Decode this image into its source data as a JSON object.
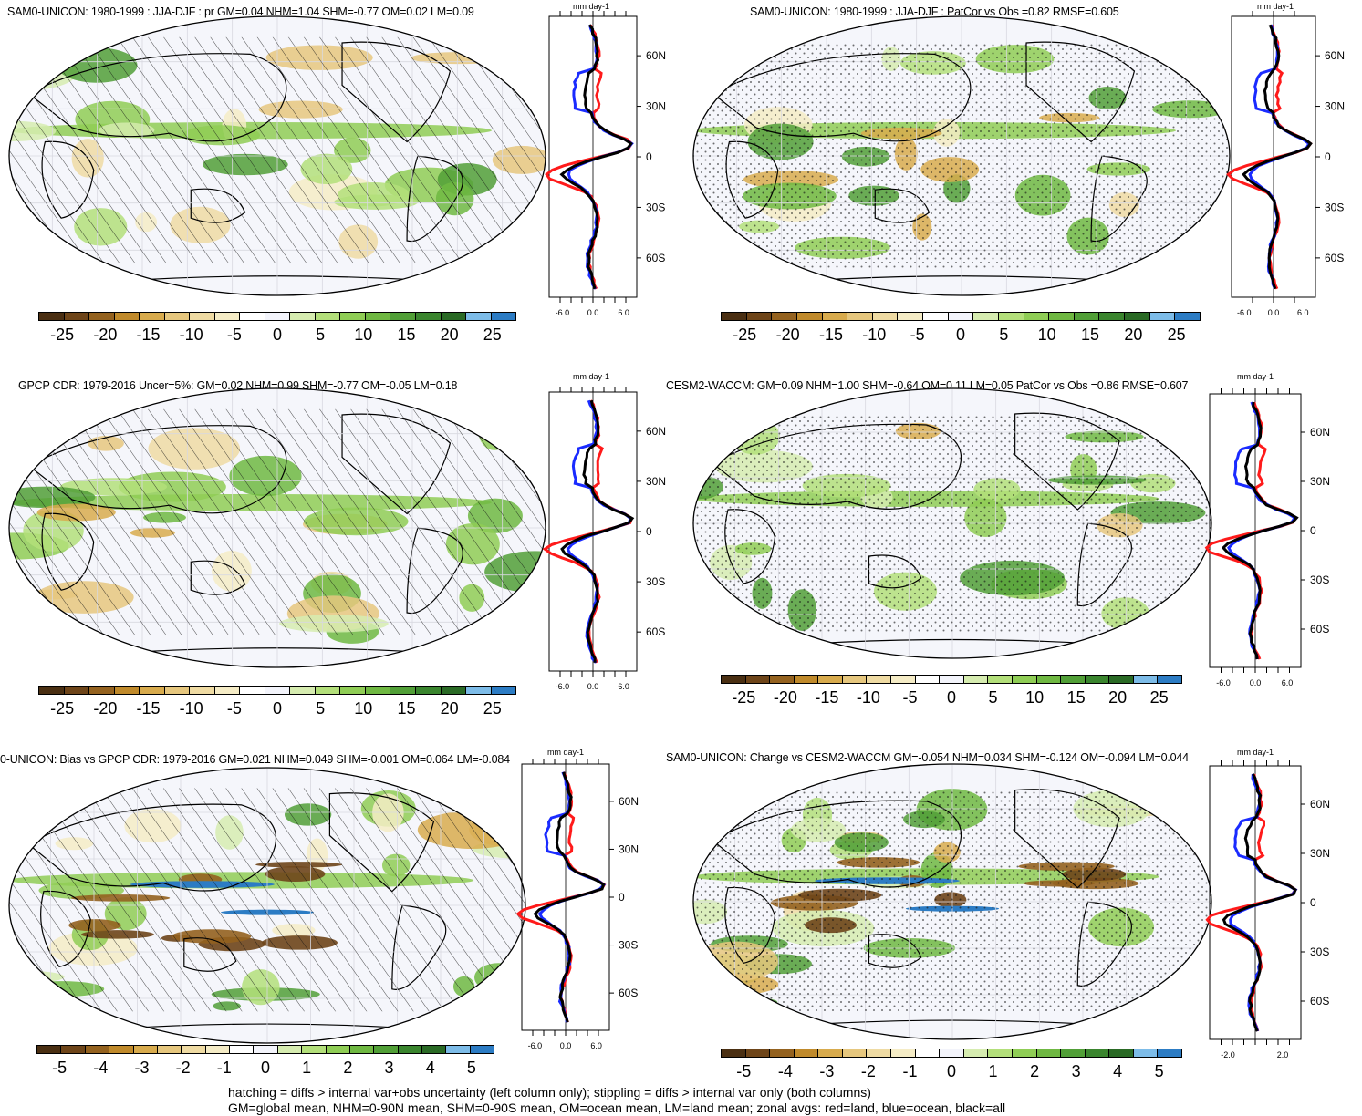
{
  "figure": {
    "panels": [
      {
        "id": "p1",
        "title": "SAM0-UNICON: 1980-1999 : JJA-DJF : pr GM=0.04 NHM=1.04 SHM=-0.77 OM=0.02 LM=0.09",
        "unit": "mm day-1",
        "lat_labels": [
          "60N",
          "30N",
          "0",
          "30S",
          "60S"
        ],
        "x_tick_labels": [
          "-6.0",
          "0.0",
          "6.0"
        ],
        "colorbar_labels": [
          "-25",
          "-20",
          "-15",
          "-10",
          "-5",
          "0",
          "5",
          "10",
          "15",
          "20",
          "25"
        ],
        "overlay": "hatch"
      },
      {
        "id": "p2",
        "title": "SAM0-UNICON: 1980-1999 : JJA-DJF : PatCor vs Obs =0.82 RMSE=0.605",
        "unit": "mm day-1",
        "lat_labels": [
          "60N",
          "30N",
          "0",
          "30S",
          "60S"
        ],
        "x_tick_labels": [
          "-6.0",
          "0.0",
          "6.0"
        ],
        "colorbar_labels": [
          "-25",
          "-20",
          "-15",
          "-10",
          "-5",
          "0",
          "5",
          "10",
          "15",
          "20",
          "25"
        ],
        "overlay": "stipple"
      },
      {
        "id": "p3",
        "title": "GPCP CDR: 1979-2016 Uncer=5%: GM=0.02 NHM=0.99 SHM=-0.77 OM=-0.05 LM=0.18",
        "unit": "mm day-1",
        "lat_labels": [
          "60N",
          "30N",
          "0",
          "30S",
          "60S"
        ],
        "x_tick_labels": [
          "-6.0",
          "0.0",
          "6.0"
        ],
        "colorbar_labels": [
          "-25",
          "-20",
          "-15",
          "-10",
          "-5",
          "0",
          "5",
          "10",
          "15",
          "20",
          "25"
        ],
        "overlay": "hatch"
      },
      {
        "id": "p4",
        "title": "CESM2-WACCM: GM=0.09 NHM=1.00 SHM=-0.64 OM=0.11 LM=0.05 PatCor vs Obs =0.86 RMSE=0.607",
        "unit": "mm day-1",
        "lat_labels": [
          "60N",
          "30N",
          "0",
          "30S",
          "60S"
        ],
        "x_tick_labels": [
          "-6.0",
          "0.0",
          "6.0"
        ],
        "colorbar_labels": [
          "-25",
          "-20",
          "-15",
          "-10",
          "-5",
          "0",
          "5",
          "10",
          "15",
          "20",
          "25"
        ],
        "overlay": "stipple"
      },
      {
        "id": "p5",
        "title": "0-UNICON: Bias vs GPCP CDR: 1979-2016 GM=0.021 NHM=0.049 SHM=-0.001 OM=0.064 LM=-0.084",
        "unit": "mm day-1",
        "lat_labels": [
          "60N",
          "30N",
          "0",
          "30S",
          "60S"
        ],
        "x_tick_labels": [
          "-6.0",
          "0.0",
          "6.0"
        ],
        "colorbar_labels": [
          "-5",
          "-4",
          "-3",
          "-2",
          "-1",
          "0",
          "1",
          "2",
          "3",
          "4",
          "5"
        ],
        "overlay": "hatch"
      },
      {
        "id": "p6",
        "title": "SAM0-UNICON: Change vs CESM2-WACCM GM=-0.054 NHM=0.034 SHM=-0.124 OM=-0.094 LM=0.044",
        "unit": "mm day-1",
        "lat_labels": [
          "60N",
          "30N",
          "0",
          "30S",
          "60S"
        ],
        "x_tick_labels": [
          "-2.0",
          "2.0"
        ],
        "colorbar_labels": [
          "-5",
          "-4",
          "-3",
          "-2",
          "-1",
          "0",
          "1",
          "2",
          "3",
          "4",
          "5"
        ],
        "overlay": "stipple"
      }
    ],
    "colorbar_colors": [
      "#4a2f12",
      "#6e4519",
      "#94621f",
      "#c08a2b",
      "#d8ab4d",
      "#e6c77e",
      "#efdba3",
      "#f5ecc6",
      "#ffffff",
      "#f3f4fb",
      "#d6ecb0",
      "#b3df7a",
      "#8fcd55",
      "#6fb842",
      "#519f37",
      "#3a852e",
      "#2a6a25",
      "#7dbce8",
      "#2c7cc4"
    ],
    "zonal_series": [
      "land",
      "ocean",
      "all"
    ],
    "colors": {
      "land": "#ff1a1a",
      "ocean": "#1a2bff",
      "all": "#000000",
      "map_bg": "#f5f6fb",
      "land_fill": "#ffffff"
    },
    "footnote": [
      "hatching = diffs > internal var+obs uncertainty (left column only); stippling = diffs > internal var only (both columns)",
      "GM=global mean, NHM=0-90N mean, SHM=0-90S mean, OM=ocean mean, LM=land mean; zonal avgs: red=land, blue=ocean, black=all"
    ]
  }
}
